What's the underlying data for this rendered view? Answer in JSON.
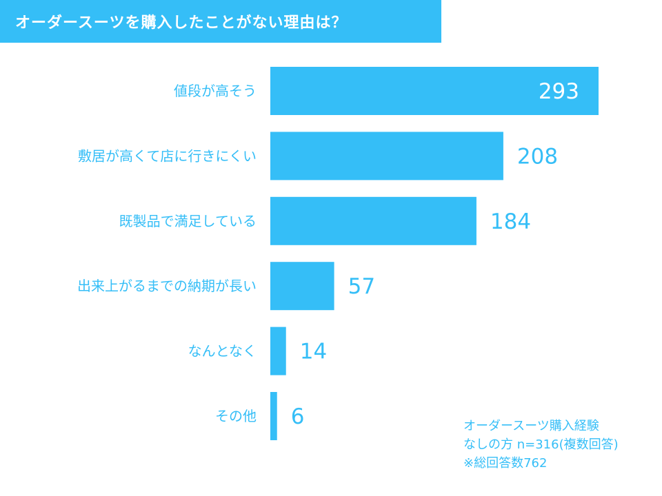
{
  "header": {
    "title": "オーダースーツを購入したことがない理由は？"
  },
  "colors": {
    "accent": "#35bef7",
    "label": "#35bef7",
    "inner_value": "#ffffff"
  },
  "chart_data": {
    "type": "bar",
    "orientation": "horizontal",
    "title": "オーダースーツを購入したことがない理由は？",
    "categories": [
      "値段が高そう",
      "敷居が高くて店に行きにくい",
      "既製品で満足している",
      "出来上がるまでの納期が長い",
      "なんとなく",
      "その他"
    ],
    "values": [
      293,
      208,
      184,
      57,
      14,
      6
    ],
    "xlim": [
      0,
      293
    ],
    "grid": false,
    "legend": "none"
  },
  "note": {
    "line1": "オーダースーツ購入経験",
    "line2": "なしの方 n=316(複数回答)",
    "line3": "※総回答数762"
  }
}
